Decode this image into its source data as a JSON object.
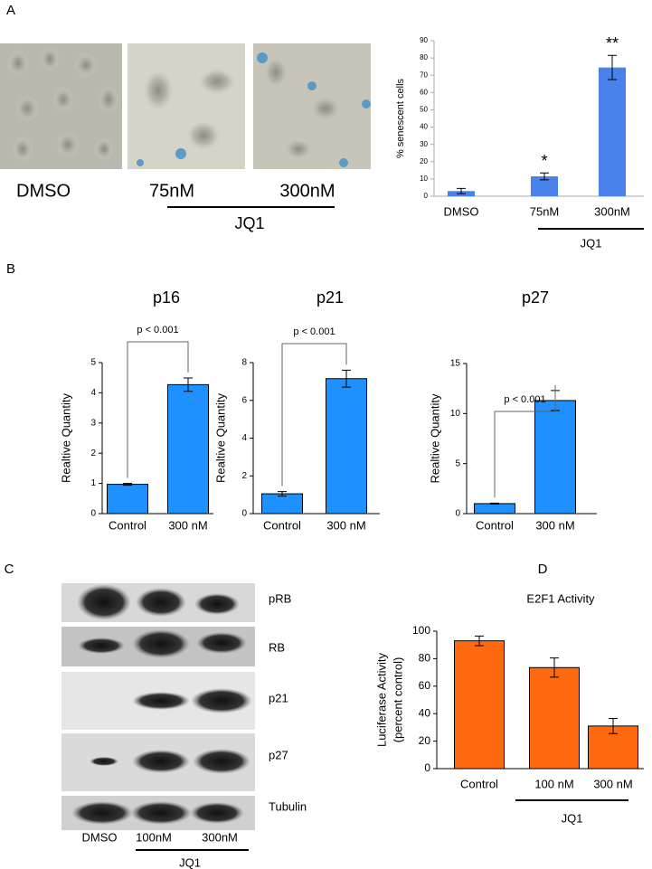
{
  "panels": [
    "A",
    "B",
    "C",
    "D"
  ],
  "micrographs": {
    "captions": [
      "DMSO",
      "75nM",
      "300nM"
    ],
    "group_label": "JQ1"
  },
  "blot": {
    "rows": [
      "pRB",
      "RB",
      "p21",
      "p27",
      "Tubulin"
    ],
    "lanes": [
      "DMSO",
      "100nM",
      "300nM"
    ],
    "group_label": "JQ1"
  },
  "chart_data": [
    {
      "type": "bar",
      "ylabel": "% senescent cells",
      "categories": [
        "DMSO",
        "75nM",
        "300nM"
      ],
      "values": [
        3,
        11.5,
        74.5
      ],
      "errors": [
        1.5,
        2,
        7
      ],
      "color": "#4a82ec",
      "ylim": [
        0,
        90
      ],
      "yticks": [
        0,
        10,
        20,
        30,
        40,
        50,
        60,
        70,
        80,
        90
      ],
      "annotations": [
        "*",
        "**"
      ],
      "group_label": "JQ1"
    },
    {
      "type": "bar",
      "title": "p16",
      "ylabel": "Realtive Quantity",
      "categories": [
        "Control",
        "300 nM"
      ],
      "values": [
        0.97,
        4.27
      ],
      "errors": [
        0.03,
        0.22
      ],
      "color": "#1e90ff",
      "ylim": [
        0,
        5
      ],
      "yticks": [
        0,
        1,
        2,
        3,
        4,
        5
      ],
      "annotation": "p < 0.001"
    },
    {
      "type": "bar",
      "title": "p21",
      "ylabel": "Realtive Quantity",
      "categories": [
        "Control",
        "300 nM"
      ],
      "values": [
        1.05,
        7.15
      ],
      "errors": [
        0.12,
        0.45
      ],
      "color": "#1e90ff",
      "ylim": [
        0,
        8
      ],
      "yticks": [
        0,
        2,
        4,
        6,
        8
      ],
      "annotation": "p < 0.001"
    },
    {
      "type": "bar",
      "title": "p27",
      "ylabel": "Realtive Quantity",
      "categories": [
        "Control",
        "300 nM"
      ],
      "values": [
        1.0,
        11.3
      ],
      "errors": [
        0.05,
        1.0
      ],
      "color": "#1e90ff",
      "ylim": [
        0,
        15
      ],
      "yticks": [
        0,
        5,
        10,
        15
      ],
      "annotation": "p < 0.001"
    },
    {
      "type": "bar",
      "title": "E2F1 Activity",
      "ylabel": [
        "Luciferase Activity",
        "(percent control)"
      ],
      "categories": [
        "Control",
        "100 nM",
        "300 nM"
      ],
      "values": [
        93,
        73.5,
        31
      ],
      "errors": [
        3.5,
        7,
        5.5
      ],
      "color": "#ff6a10",
      "ylim": [
        0,
        100
      ],
      "yticks": [
        0,
        20,
        40,
        60,
        80,
        100
      ],
      "group_label": "JQ1"
    }
  ]
}
